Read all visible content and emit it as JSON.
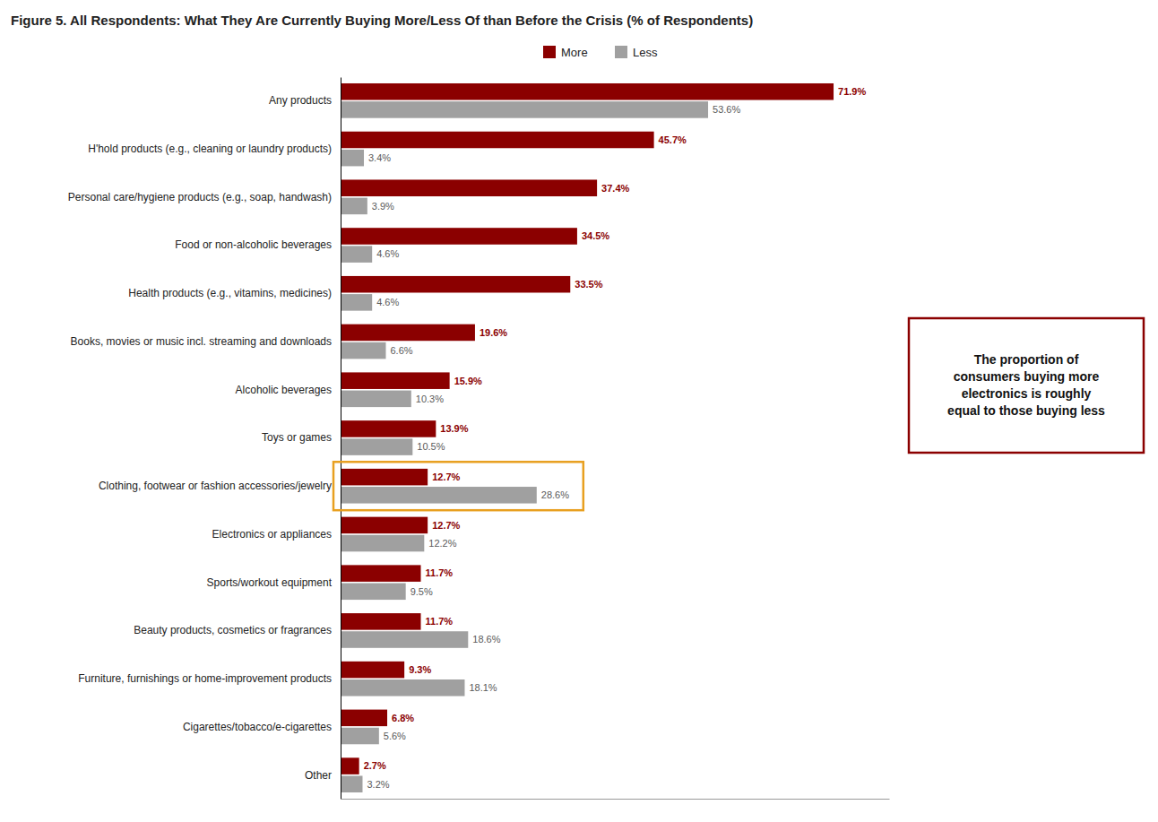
{
  "chart_data": {
    "type": "bar",
    "orientation": "horizontal",
    "title": "Figure 5. All Respondents: What They Are Currently Buying More/Less Of than Before the Crisis (% of Respondents)",
    "categories": [
      "Any products",
      "H'hold products (e.g., cleaning or laundry products)",
      "Personal care/hygiene products (e.g., soap, handwash)",
      "Food or non-alcoholic beverages",
      "Health products (e.g., vitamins, medicines)",
      "Books, movies or music incl. streaming and downloads",
      "Alcoholic beverages",
      "Toys or games",
      "Clothing, footwear or fashion accessories/jewelry",
      "Electronics or appliances",
      "Sports/workout equipment",
      "Beauty products, cosmetics or fragrances",
      "Furniture, furnishings or home-improvement products",
      "Cigarettes/tobacco/e-cigarettes",
      "Other"
    ],
    "series": [
      {
        "name": "More",
        "color": "#8B0000",
        "values": [
          71.9,
          45.7,
          37.4,
          34.5,
          33.5,
          19.6,
          15.9,
          13.9,
          12.7,
          12.7,
          11.7,
          11.7,
          9.3,
          6.8,
          2.7
        ],
        "value_labels": [
          "71.9%",
          "45.7%",
          "37.4%",
          "34.5%",
          "33.5%",
          "19.6%",
          "15.9%",
          "13.9%",
          "12.7%",
          "12.7%",
          "11.7%",
          "11.7%",
          "9.3%",
          "6.8%",
          "2.7%"
        ]
      },
      {
        "name": "Less",
        "color": "#A0A0A0",
        "values": [
          53.6,
          3.4,
          3.9,
          4.6,
          4.6,
          6.6,
          10.3,
          10.5,
          28.6,
          12.2,
          9.5,
          18.6,
          18.1,
          5.6,
          3.2
        ],
        "value_labels": [
          "53.6%",
          "3.4%",
          "3.9%",
          "4.6%",
          "4.6%",
          "6.6%",
          "10.3%",
          "10.5%",
          "28.6%",
          "12.2%",
          "9.5%",
          "18.6%",
          "18.1%",
          "5.6%",
          "3.2%"
        ]
      }
    ],
    "xlim": [
      0,
      80
    ],
    "data_labels": true,
    "tick_labels": "y",
    "grid": false,
    "legend": "top",
    "annotations": [
      {
        "text": "The proportion of\nconsumers buying more\nelectronics is roughly\nequal to those buying less",
        "color": "#8B0000"
      }
    ]
  }
}
